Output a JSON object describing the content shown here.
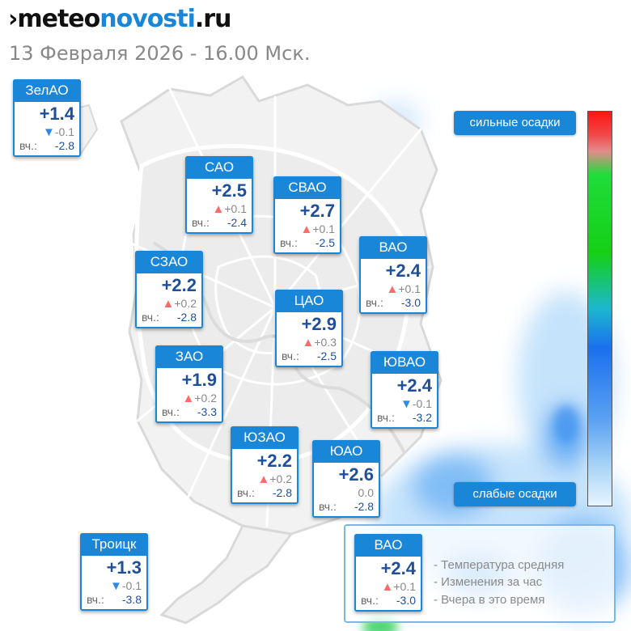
{
  "header": {
    "logo_part1": "›meteo",
    "logo_part2": "novosti",
    "logo_part3": ".ru",
    "datetime": "13 Февраля 2026 - 16.00 Мск."
  },
  "labels": {
    "yesterday_short": "вч.:"
  },
  "districts": [
    {
      "id": "zelao",
      "name": "ЗелАО",
      "temp": "+1.4",
      "trend": "down",
      "change": "-0.1",
      "yesterday": "-2.8"
    },
    {
      "id": "sao",
      "name": "САО",
      "temp": "+2.5",
      "trend": "up",
      "change": "+0.1",
      "yesterday": "-2.4"
    },
    {
      "id": "svao",
      "name": "СВАО",
      "temp": "+2.7",
      "trend": "up",
      "change": "+0.1",
      "yesterday": "-2.5"
    },
    {
      "id": "szao",
      "name": "СЗАО",
      "temp": "+2.2",
      "trend": "up",
      "change": "+0.2",
      "yesterday": "-2.8"
    },
    {
      "id": "vao",
      "name": "ВАО",
      "temp": "+2.4",
      "trend": "up",
      "change": "+0.1",
      "yesterday": "-3.0"
    },
    {
      "id": "cao",
      "name": "ЦАО",
      "temp": "+2.9",
      "trend": "up",
      "change": "+0.3",
      "yesterday": "-2.5"
    },
    {
      "id": "zao",
      "name": "ЗАО",
      "temp": "+1.9",
      "trend": "up",
      "change": "+0.2",
      "yesterday": "-3.3"
    },
    {
      "id": "yuvao",
      "name": "ЮВАО",
      "temp": "+2.4",
      "trend": "down",
      "change": "-0.1",
      "yesterday": "-3.2"
    },
    {
      "id": "yuzao",
      "name": "ЮЗАО",
      "temp": "+2.2",
      "trend": "up",
      "change": "+0.2",
      "yesterday": "-2.8"
    },
    {
      "id": "yuao",
      "name": "ЮАО",
      "temp": "+2.6",
      "trend": "none",
      "change": "0.0",
      "yesterday": "-2.8"
    },
    {
      "id": "troitsk",
      "name": "Троицк",
      "temp": "+1.3",
      "trend": "down",
      "change": "-0.1",
      "yesterday": "-3.8"
    }
  ],
  "scale": {
    "heavy_label": "сильные осадки",
    "light_label": "слабые осадки",
    "colors": [
      "#ff1414",
      "#1fdc39",
      "#1a70ee",
      "#e7f4ff"
    ]
  },
  "legend": {
    "sample": {
      "name": "ВАО",
      "temp": "+2.4",
      "trend": "up",
      "change": "+0.1",
      "yesterday": "-3.0"
    },
    "line1": "- Температура средняя",
    "line2": "- Изменения за час",
    "line3": "- Вчера в это время"
  },
  "colors": {
    "accent": "#1a86d8",
    "temp_text": "#1f4f9a",
    "up_arrow": "#ff6b6b",
    "down_arrow": "#2e8ae6"
  }
}
